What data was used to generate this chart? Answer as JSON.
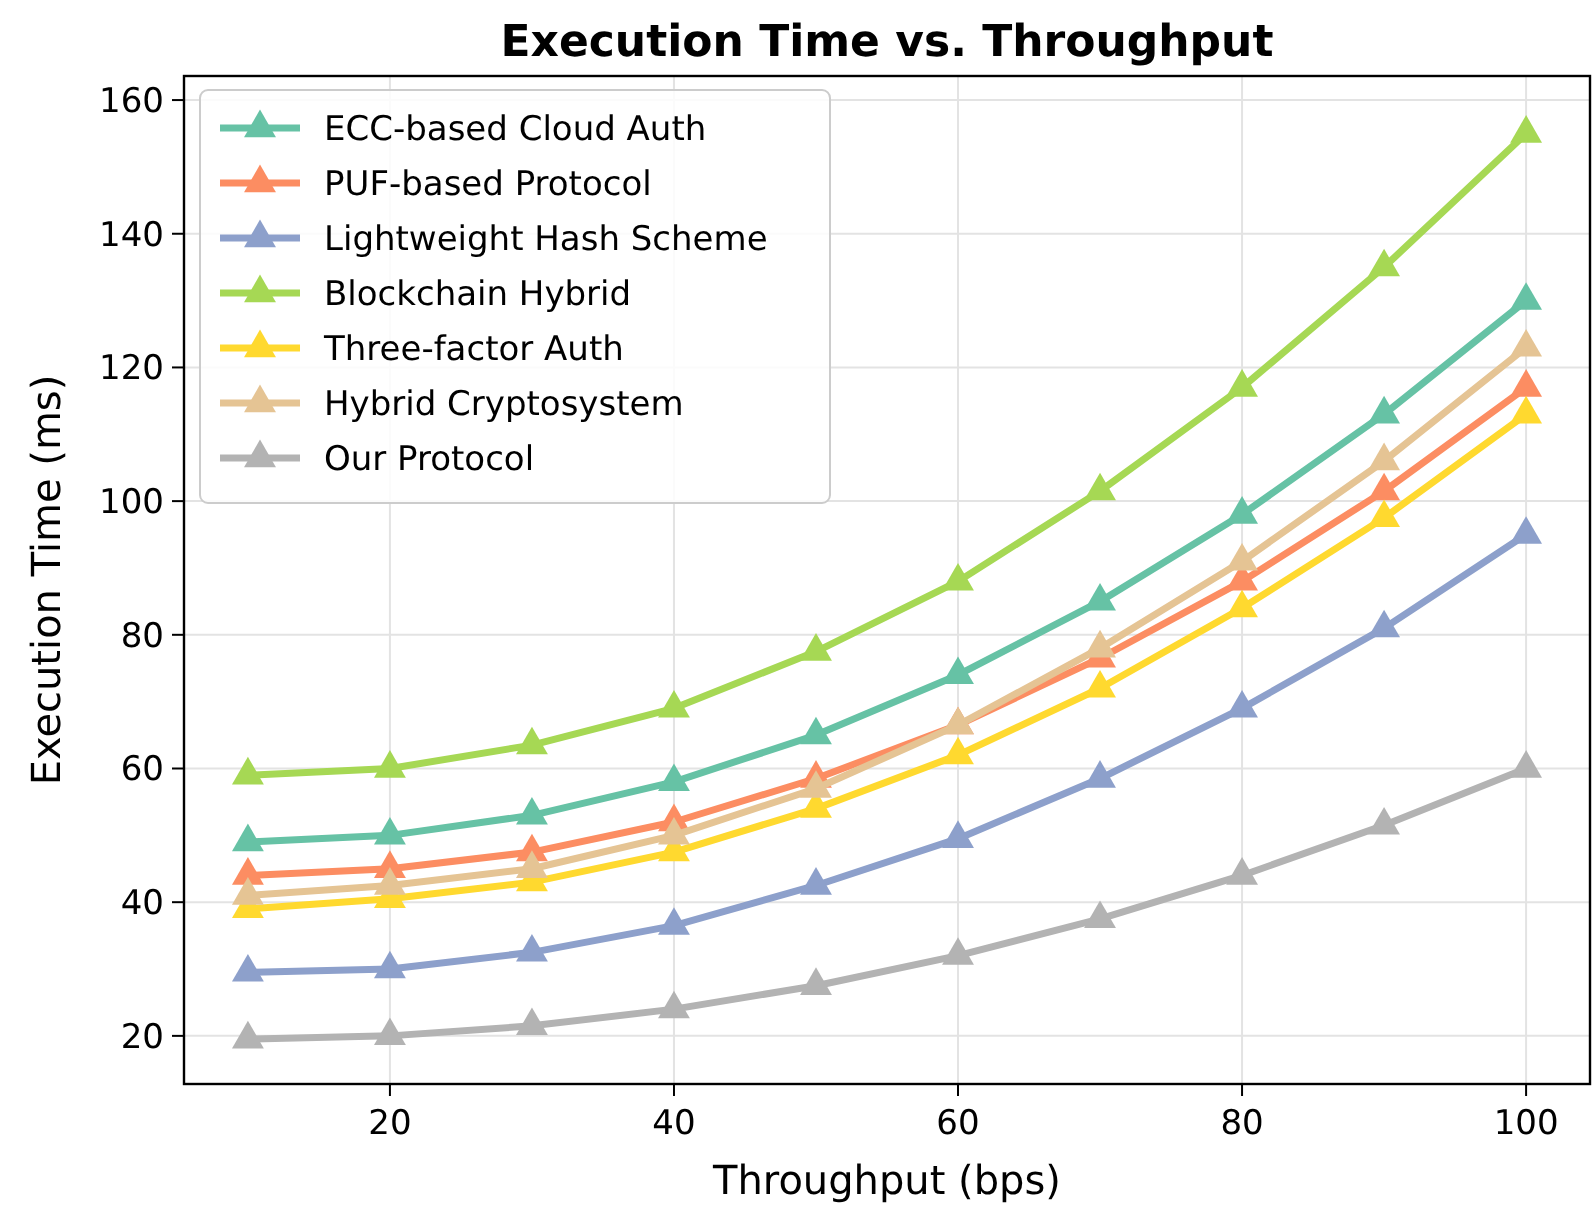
{
  "chart_data": {
    "type": "line",
    "title": "Execution Time vs. Throughput",
    "xlabel": "Throughput (bps)",
    "ylabel": "Execution Time (ms)",
    "x": [
      10,
      20,
      30,
      40,
      50,
      60,
      70,
      80,
      90,
      100
    ],
    "series": [
      {
        "name": "ECC-based Cloud Auth",
        "color": "#66c2a5",
        "values": [
          49,
          50,
          53,
          58,
          65,
          74,
          85,
          98,
          113,
          130
        ]
      },
      {
        "name": "PUF-based Protocol",
        "color": "#fc8d62",
        "values": [
          44,
          45,
          47.5,
          52,
          58.5,
          66.5,
          76.5,
          88,
          101.5,
          117
        ]
      },
      {
        "name": "Lightweight Hash Scheme",
        "color": "#8da0cb",
        "values": [
          29.5,
          30,
          32.5,
          36.5,
          42.5,
          49.5,
          58.5,
          69,
          81,
          95
        ]
      },
      {
        "name": "Blockchain Hybrid",
        "color": "#a6d854",
        "values": [
          59,
          60,
          63.5,
          69,
          77.5,
          88,
          101.5,
          117,
          135,
          155
        ]
      },
      {
        "name": "Three-factor Auth",
        "color": "#ffd92f",
        "values": [
          39,
          40.5,
          43,
          47.5,
          54,
          62,
          72,
          84,
          97.5,
          113
        ]
      },
      {
        "name": "Hybrid Cryptosystem",
        "color": "#e5c494",
        "values": [
          41,
          42.5,
          45,
          50,
          57,
          66.5,
          78,
          91,
          106,
          123
        ]
      },
      {
        "name": "Our Protocol",
        "color": "#b3b3b3",
        "values": [
          19.5,
          20,
          21.5,
          24,
          27.5,
          32,
          37.5,
          44,
          51.5,
          60
        ]
      }
    ],
    "xlim": [
      5.5,
      104.5
    ],
    "ylim": [
      12.8,
      163.6
    ],
    "xticks": [
      20,
      40,
      60,
      80,
      100
    ],
    "yticks": [
      20,
      40,
      60,
      80,
      100,
      120,
      140,
      160
    ],
    "grid": true,
    "legend": "top left",
    "marker": "triangle",
    "line_style": "solid"
  }
}
